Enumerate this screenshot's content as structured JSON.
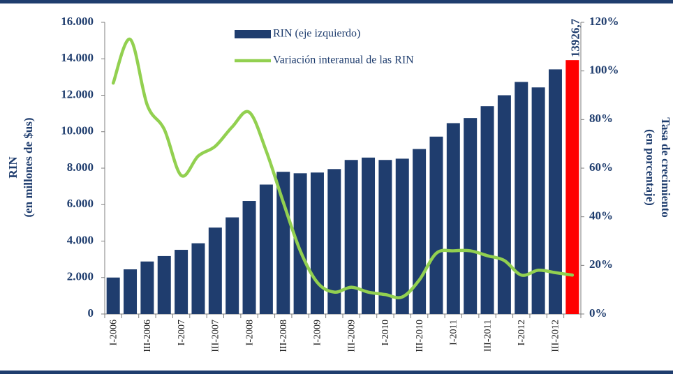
{
  "chart_data": {
    "type": "bar_line",
    "categories": [
      "I-2006",
      null,
      "III-2006",
      null,
      "I-2007",
      null,
      "III-2007",
      null,
      "I-2008",
      null,
      "III-2008",
      null,
      "I-2009",
      null,
      "III-2009",
      null,
      "I-2010",
      null,
      "III-2010",
      null,
      "I-2011",
      null,
      "III-2011",
      null,
      "I-2012",
      null,
      "III-2012",
      null
    ],
    "series": [
      {
        "name": "RIN (eje izquierdo)",
        "type": "bar",
        "color": "#1f3d6e",
        "colors": [
          "#1f3d6e",
          "#1f3d6e",
          "#1f3d6e",
          "#1f3d6e",
          "#1f3d6e",
          "#1f3d6e",
          "#1f3d6e",
          "#1f3d6e",
          "#1f3d6e",
          "#1f3d6e",
          "#1f3d6e",
          "#1f3d6e",
          "#1f3d6e",
          "#1f3d6e",
          "#1f3d6e",
          "#1f3d6e",
          "#1f3d6e",
          "#1f3d6e",
          "#1f3d6e",
          "#1f3d6e",
          "#1f3d6e",
          "#1f3d6e",
          "#1f3d6e",
          "#1f3d6e",
          "#1f3d6e",
          "#1f3d6e",
          "#1f3d6e",
          "#ff0000"
        ],
        "values": [
          2000,
          2450,
          2880,
          3180,
          3520,
          3880,
          4740,
          5300,
          6200,
          7100,
          7800,
          7720,
          7760,
          7950,
          8450,
          8580,
          8450,
          8520,
          9050,
          9730,
          10470,
          10750,
          11400,
          12000,
          12730,
          12430,
          13420,
          13926.7
        ],
        "value_labels": [
          null,
          null,
          null,
          null,
          null,
          null,
          null,
          null,
          null,
          null,
          null,
          null,
          null,
          null,
          null,
          null,
          null,
          null,
          null,
          null,
          null,
          null,
          null,
          null,
          null,
          null,
          null,
          "13926,7"
        ]
      },
      {
        "name": "Variación interanual de las RIN",
        "type": "line",
        "axis": "y2",
        "color": "#92d050",
        "values": [
          95,
          113,
          86,
          76,
          57,
          65,
          69,
          77,
          83,
          67,
          46,
          26,
          13,
          9,
          11,
          9,
          8,
          7,
          14,
          25,
          26,
          26,
          24,
          22,
          16,
          18,
          17,
          16
        ]
      }
    ],
    "ylabel": [
      "RIN",
      "(en millones de $us)"
    ],
    "y2label": [
      "Tasa de crecimiento",
      "(en porcentaje)"
    ],
    "ylim": [
      0,
      16000
    ],
    "yticks": [
      {
        "value": 0,
        "label": "0"
      },
      {
        "value": 2000,
        "label": "2.000"
      },
      {
        "value": 4000,
        "label": "4.000"
      },
      {
        "value": 6000,
        "label": "6.000"
      },
      {
        "value": 8000,
        "label": "8.000"
      },
      {
        "value": 10000,
        "label": "10.000"
      },
      {
        "value": 12000,
        "label": "12.000"
      },
      {
        "value": 14000,
        "label": "14.000"
      },
      {
        "value": 16000,
        "label": "16.000"
      }
    ],
    "y2lim": [
      0,
      120
    ],
    "y2ticks": [
      {
        "value": 0,
        "label": "0%"
      },
      {
        "value": 20,
        "label": "20%"
      },
      {
        "value": 40,
        "label": "40%"
      },
      {
        "value": 60,
        "label": "60%"
      },
      {
        "value": 80,
        "label": "80%"
      },
      {
        "value": 100,
        "label": "100%"
      },
      {
        "value": 120,
        "label": "120%"
      }
    ],
    "legend": "top"
  }
}
